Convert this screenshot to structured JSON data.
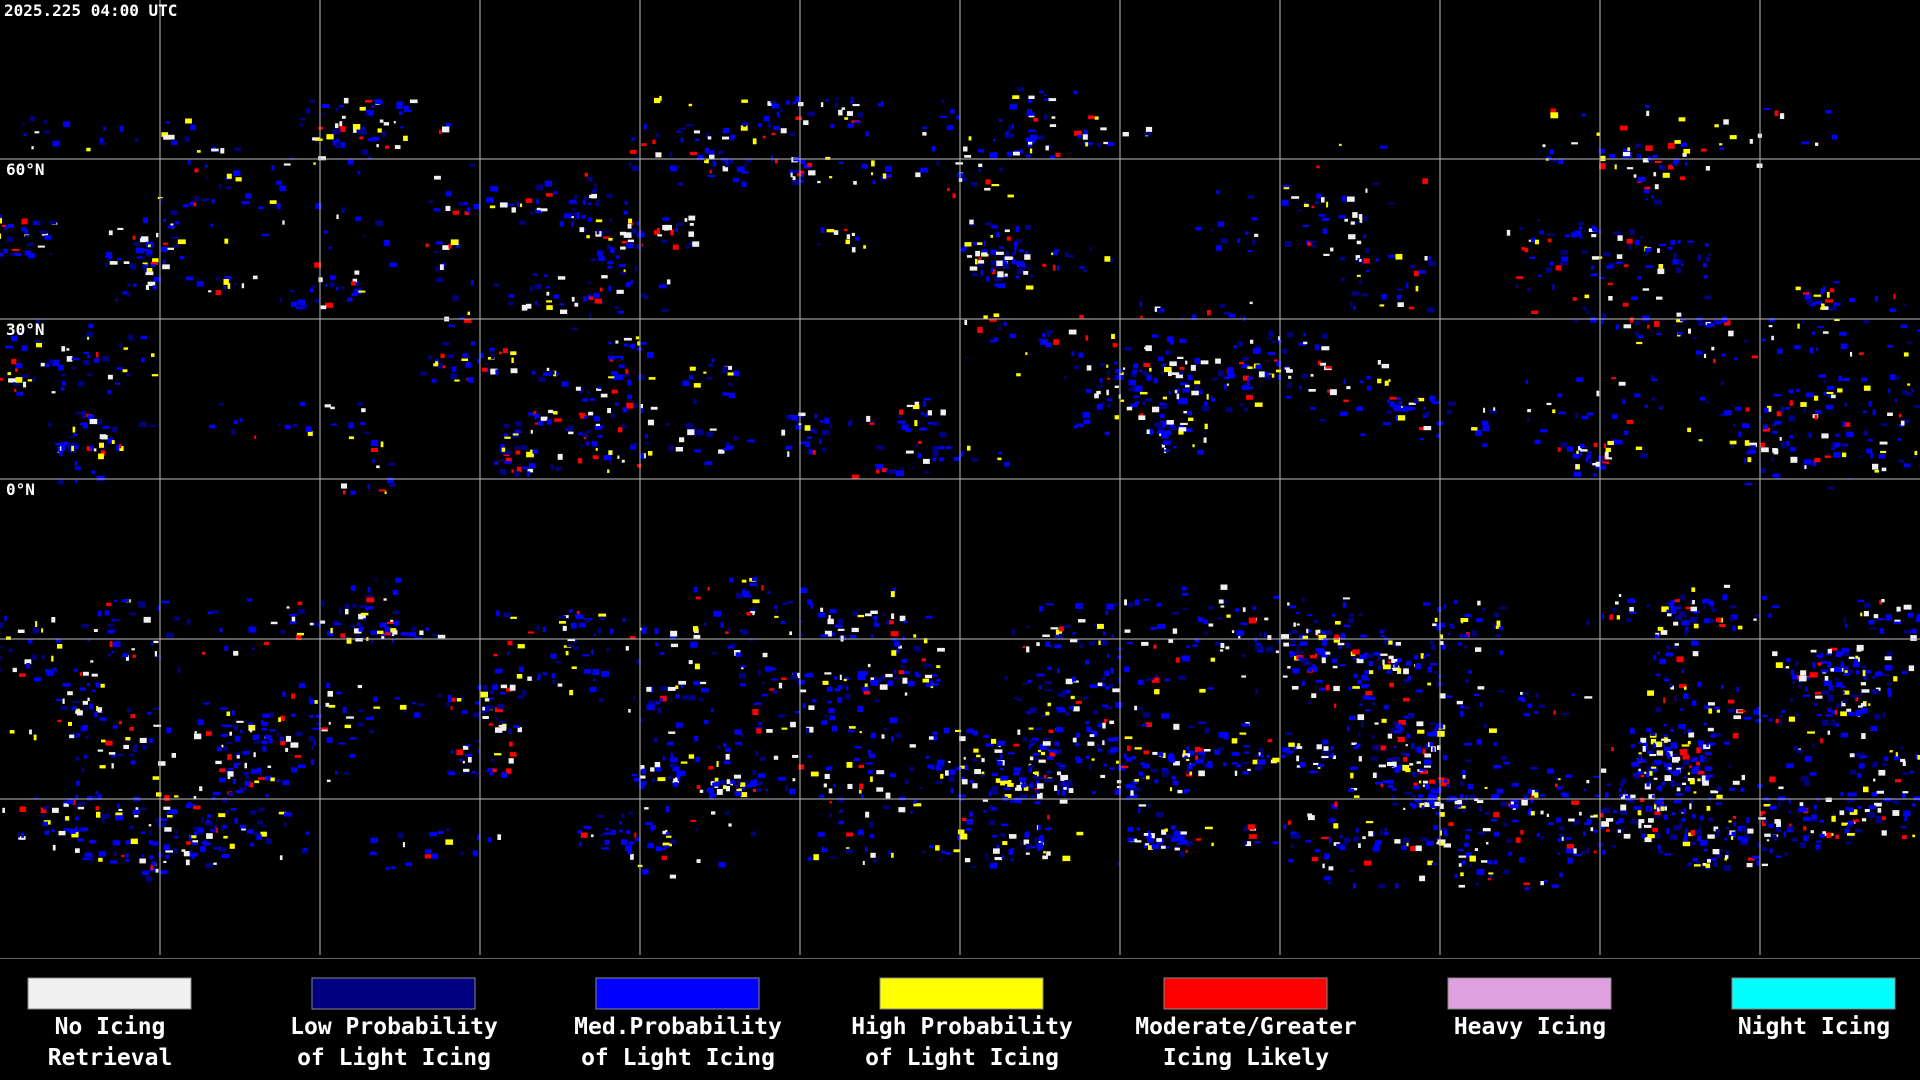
{
  "header": {
    "timestamp": "2025.225 04:00 UTC"
  },
  "map": {
    "latitude_labels": [
      "60°N",
      "30°N",
      "0°N"
    ]
  },
  "legend": {
    "items": [
      {
        "label_lines": [
          "No Icing",
          "Retrieval"
        ],
        "color": "#f0f0f0"
      },
      {
        "label_lines": [
          "Low Probability",
          "of Light Icing"
        ],
        "color": "#000080"
      },
      {
        "label_lines": [
          "Med.Probability",
          "of Light Icing"
        ],
        "color": "#0000ff"
      },
      {
        "label_lines": [
          "High Probability",
          "of Light Icing"
        ],
        "color": "#ffff00"
      },
      {
        "label_lines": [
          "Moderate/Greater",
          "Icing Likely"
        ],
        "color": "#ff0000"
      },
      {
        "label_lines": [
          "Heavy Icing"
        ],
        "color": "#e0a0e0"
      },
      {
        "label_lines": [
          "Night Icing"
        ],
        "color": "#00ffff"
      }
    ]
  }
}
